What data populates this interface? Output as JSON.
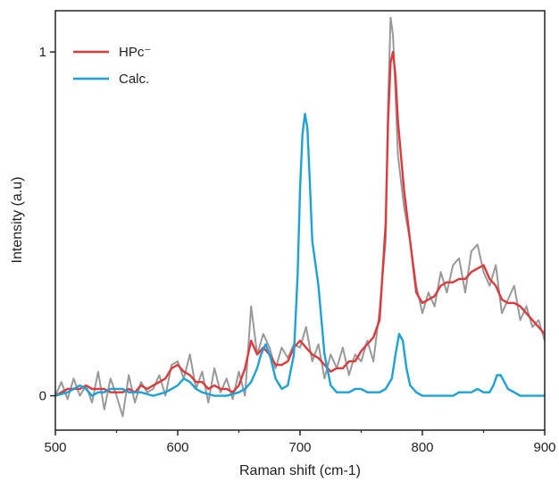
{
  "chart_data": {
    "type": "line",
    "xlabel": "Raman shift (cm-1)",
    "ylabel": "Intensity (a.u)",
    "xlim": [
      500,
      900
    ],
    "ylim": [
      -0.1,
      1.12
    ],
    "x_ticks": [
      "500",
      "600",
      "700",
      "800",
      "900"
    ],
    "y_ticks": [
      "0",
      "1"
    ],
    "grid": false,
    "legend_position": "top-left",
    "series": [
      {
        "name": "",
        "role": "raw spectrum",
        "color": "#999999",
        "x": [
          500,
          505,
          510,
          515,
          520,
          525,
          530,
          535,
          540,
          545,
          550,
          555,
          560,
          565,
          570,
          575,
          580,
          585,
          590,
          595,
          600,
          605,
          610,
          615,
          620,
          625,
          630,
          635,
          640,
          645,
          650,
          655,
          660,
          665,
          670,
          675,
          680,
          685,
          690,
          695,
          700,
          705,
          710,
          715,
          720,
          725,
          730,
          735,
          740,
          745,
          750,
          755,
          760,
          765,
          770,
          772,
          774,
          776,
          778,
          780,
          785,
          790,
          795,
          800,
          805,
          810,
          815,
          820,
          825,
          830,
          835,
          840,
          845,
          850,
          855,
          860,
          865,
          870,
          875,
          880,
          885,
          890,
          895,
          900
        ],
        "y": [
          0.0,
          0.04,
          -0.01,
          0.05,
          0.0,
          0.03,
          -0.02,
          0.07,
          -0.04,
          0.05,
          0.0,
          -0.06,
          0.06,
          -0.02,
          0.04,
          0.01,
          0.02,
          0.06,
          0.0,
          0.09,
          0.1,
          0.05,
          0.12,
          0.02,
          0.07,
          -0.02,
          0.08,
          0.01,
          0.05,
          -0.01,
          0.07,
          0.0,
          0.26,
          0.12,
          0.18,
          0.14,
          0.08,
          0.14,
          0.11,
          0.15,
          0.14,
          0.2,
          0.1,
          0.15,
          0.05,
          0.12,
          0.08,
          0.14,
          0.06,
          0.12,
          0.1,
          0.16,
          0.1,
          0.25,
          0.45,
          0.85,
          1.1,
          1.05,
          0.88,
          0.7,
          0.55,
          0.45,
          0.32,
          0.24,
          0.3,
          0.26,
          0.36,
          0.3,
          0.38,
          0.4,
          0.3,
          0.42,
          0.44,
          0.36,
          0.32,
          0.38,
          0.24,
          0.28,
          0.32,
          0.22,
          0.26,
          0.2,
          0.22,
          0.16
        ]
      },
      {
        "name": "HPc⁻",
        "color": "#e0393b",
        "x": [
          500,
          505,
          510,
          515,
          520,
          525,
          530,
          535,
          540,
          545,
          550,
          555,
          560,
          565,
          570,
          575,
          580,
          585,
          590,
          595,
          600,
          605,
          610,
          615,
          620,
          625,
          630,
          635,
          640,
          645,
          650,
          655,
          660,
          665,
          670,
          675,
          680,
          685,
          690,
          695,
          700,
          705,
          710,
          715,
          720,
          725,
          730,
          735,
          740,
          745,
          750,
          755,
          760,
          765,
          770,
          772,
          774,
          776,
          778,
          780,
          785,
          790,
          795,
          800,
          805,
          810,
          815,
          820,
          825,
          830,
          835,
          840,
          845,
          850,
          855,
          860,
          865,
          870,
          875,
          880,
          885,
          890,
          895,
          900
        ],
        "y": [
          0.0,
          0.01,
          0.02,
          0.02,
          0.02,
          0.03,
          0.02,
          0.02,
          0.02,
          0.01,
          0.01,
          0.01,
          0.02,
          0.01,
          0.03,
          0.02,
          0.03,
          0.04,
          0.05,
          0.08,
          0.09,
          0.07,
          0.06,
          0.04,
          0.04,
          0.02,
          0.03,
          0.02,
          0.02,
          0.01,
          0.03,
          0.08,
          0.16,
          0.12,
          0.14,
          0.12,
          0.09,
          0.09,
          0.1,
          0.14,
          0.16,
          0.14,
          0.12,
          0.11,
          0.09,
          0.07,
          0.08,
          0.08,
          0.1,
          0.1,
          0.13,
          0.15,
          0.17,
          0.22,
          0.5,
          0.8,
          0.97,
          1.0,
          0.93,
          0.8,
          0.6,
          0.45,
          0.3,
          0.27,
          0.28,
          0.29,
          0.32,
          0.33,
          0.33,
          0.34,
          0.34,
          0.36,
          0.37,
          0.38,
          0.34,
          0.32,
          0.28,
          0.27,
          0.27,
          0.26,
          0.24,
          0.22,
          0.2,
          0.18
        ]
      },
      {
        "name": "Calc.",
        "color": "#1ba3d9",
        "x": [
          500,
          510,
          515,
          520,
          525,
          530,
          535,
          540,
          545,
          550,
          555,
          560,
          565,
          570,
          580,
          590,
          595,
          600,
          605,
          610,
          615,
          620,
          630,
          640,
          650,
          655,
          660,
          665,
          668,
          672,
          676,
          680,
          685,
          690,
          695,
          698,
          700,
          702,
          704,
          706,
          708,
          710,
          712,
          715,
          718,
          720,
          725,
          730,
          735,
          740,
          745,
          750,
          755,
          760,
          765,
          770,
          775,
          778,
          781,
          784,
          787,
          790,
          795,
          800,
          810,
          820,
          825,
          830,
          835,
          840,
          845,
          850,
          855,
          858,
          861,
          864,
          867,
          870,
          875,
          880,
          890,
          900
        ],
        "y": [
          0.0,
          0.01,
          0.02,
          0.03,
          0.02,
          0.0,
          0.01,
          0.01,
          0.02,
          0.02,
          0.02,
          0.01,
          0.01,
          0.01,
          0.0,
          0.01,
          0.02,
          0.03,
          0.05,
          0.04,
          0.02,
          0.01,
          0.0,
          0.0,
          0.01,
          0.02,
          0.04,
          0.08,
          0.12,
          0.15,
          0.11,
          0.05,
          0.02,
          0.03,
          0.12,
          0.35,
          0.6,
          0.76,
          0.82,
          0.78,
          0.62,
          0.45,
          0.4,
          0.32,
          0.2,
          0.12,
          0.03,
          0.01,
          0.01,
          0.01,
          0.02,
          0.02,
          0.01,
          0.01,
          0.01,
          0.02,
          0.05,
          0.12,
          0.18,
          0.16,
          0.08,
          0.03,
          0.01,
          0.0,
          0.0,
          0.0,
          0.0,
          0.01,
          0.01,
          0.01,
          0.02,
          0.01,
          0.01,
          0.03,
          0.06,
          0.06,
          0.04,
          0.02,
          0.01,
          0.0,
          0.0,
          0.0
        ]
      }
    ]
  }
}
